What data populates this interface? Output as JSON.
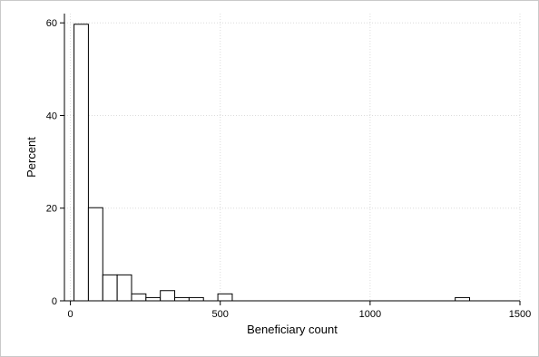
{
  "chart_data": {
    "type": "bar",
    "title": "",
    "xlabel": "Beneficiary count",
    "ylabel": "Percent",
    "xlim": [
      -20,
      1500
    ],
    "ylim": [
      0,
      62
    ],
    "x_ticks": [
      0,
      500,
      1000,
      1500
    ],
    "y_ticks": [
      0,
      20,
      40,
      60
    ],
    "grid": true,
    "bin_width": 48,
    "bins": [
      {
        "x0": 12,
        "value": 59.7
      },
      {
        "x0": 60,
        "value": 20.1
      },
      {
        "x0": 108,
        "value": 5.6
      },
      {
        "x0": 156,
        "value": 5.6
      },
      {
        "x0": 204,
        "value": 1.5
      },
      {
        "x0": 252,
        "value": 0.7
      },
      {
        "x0": 300,
        "value": 2.2
      },
      {
        "x0": 348,
        "value": 0.7
      },
      {
        "x0": 396,
        "value": 0.7
      },
      {
        "x0": 492,
        "value": 1.5
      },
      {
        "x0": 1284,
        "value": 0.7
      }
    ]
  }
}
